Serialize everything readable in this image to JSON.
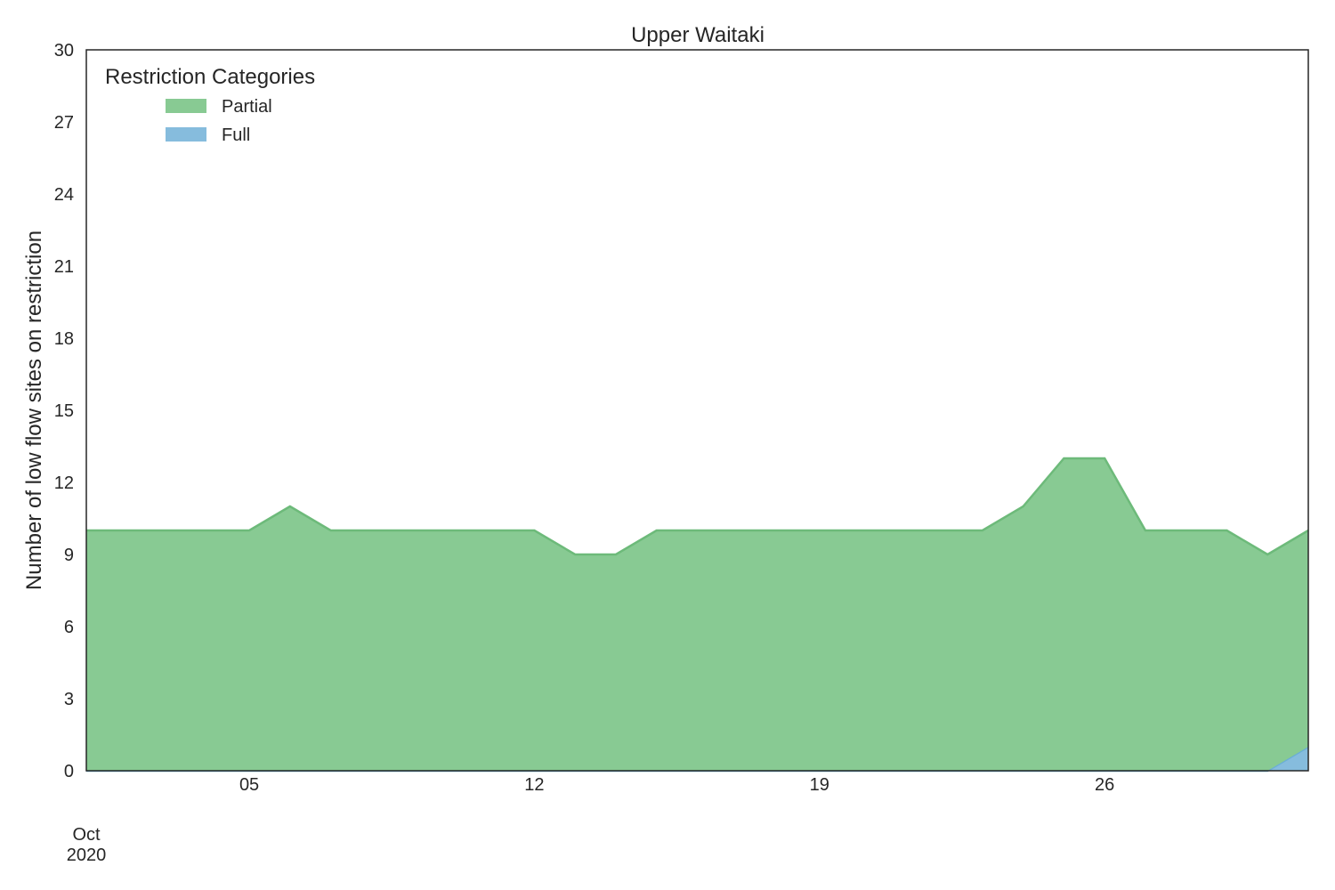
{
  "chart_data": {
    "type": "area",
    "stacked": true,
    "title": "Upper Waitaki",
    "xlabel": "",
    "ylabel": "Number of low flow sites on restriction",
    "x": [
      "2020-10-01",
      "2020-10-02",
      "2020-10-03",
      "2020-10-04",
      "2020-10-05",
      "2020-10-06",
      "2020-10-07",
      "2020-10-08",
      "2020-10-09",
      "2020-10-10",
      "2020-10-11",
      "2020-10-12",
      "2020-10-13",
      "2020-10-14",
      "2020-10-15",
      "2020-10-16",
      "2020-10-17",
      "2020-10-18",
      "2020-10-19",
      "2020-10-20",
      "2020-10-21",
      "2020-10-22",
      "2020-10-23",
      "2020-10-24",
      "2020-10-25",
      "2020-10-26",
      "2020-10-27",
      "2020-10-28",
      "2020-10-29",
      "2020-10-30",
      "2020-10-31"
    ],
    "series": [
      {
        "name": "Full",
        "color": "#86bcdd",
        "line_color": "#6aaed6",
        "values": [
          0,
          0,
          0,
          0,
          0,
          0,
          0,
          0,
          0,
          0,
          0,
          0,
          0,
          0,
          0,
          0,
          0,
          0,
          0,
          0,
          0,
          0,
          0,
          0,
          0,
          0,
          0,
          0,
          0,
          0,
          1
        ]
      },
      {
        "name": "Partial",
        "color": "#88ca93",
        "line_color": "#6dba7a",
        "values": [
          10,
          10,
          10,
          10,
          10,
          11,
          10,
          10,
          10,
          10,
          10,
          10,
          9,
          9,
          10,
          10,
          10,
          10,
          10,
          10,
          10,
          10,
          10,
          11,
          13,
          13,
          10,
          10,
          10,
          9,
          9
        ]
      }
    ],
    "ylim": [
      0,
      30
    ],
    "yticks": [
      "0",
      "3",
      "6",
      "9",
      "12",
      "15",
      "18",
      "21",
      "24",
      "27",
      "30"
    ],
    "xticks": [
      {
        "date": "2020-10-05",
        "label": "05"
      },
      {
        "date": "2020-10-12",
        "label": "12"
      },
      {
        "date": "2020-10-19",
        "label": "19"
      },
      {
        "date": "2020-10-26",
        "label": "26"
      }
    ],
    "x_offset_label": {
      "month": "Oct",
      "year": "2020"
    },
    "legend": {
      "title": "Restriction Categories",
      "placement": "top-left",
      "entries": [
        "Partial",
        "Full"
      ]
    },
    "grid": false
  }
}
